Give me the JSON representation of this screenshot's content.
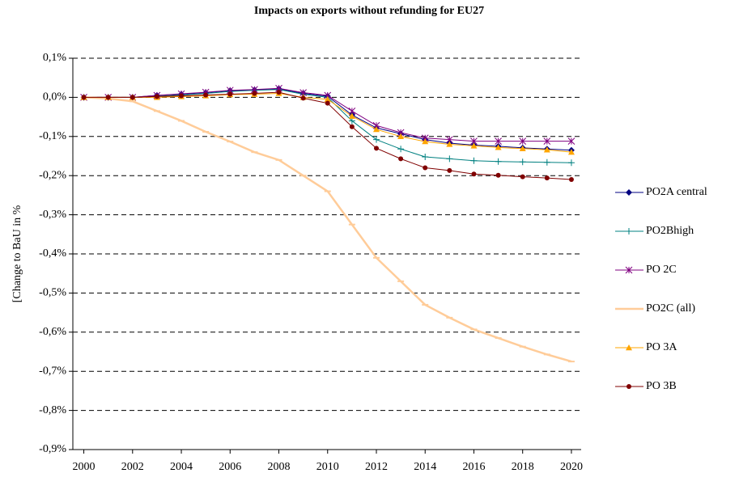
{
  "chart_data": {
    "type": "line",
    "title": "Impacts on exports without refunding for EU27",
    "y_label": "[Change to BaU in %",
    "x": [
      2000,
      2001,
      2002,
      2003,
      2004,
      2005,
      2006,
      2007,
      2008,
      2009,
      2010,
      2011,
      2012,
      2013,
      2014,
      2015,
      2016,
      2017,
      2018,
      2019,
      2020
    ],
    "xlim": [
      1999.55,
      2020.4
    ],
    "xticks": [
      2000,
      2002,
      2004,
      2006,
      2008,
      2010,
      2012,
      2014,
      2016,
      2018,
      2020
    ],
    "ylim": [
      -0.9,
      0.1
    ],
    "yticks": [
      {
        "value": 0.1,
        "label": "0,1%"
      },
      {
        "value": 0,
        "label": "0,0%"
      },
      {
        "value": -0.1,
        "label": "-0,1%"
      },
      {
        "value": -0.2,
        "label": "-0,2%"
      },
      {
        "value": -0.3,
        "label": "-0,3%"
      },
      {
        "value": -0.4,
        "label": "-0,4%"
      },
      {
        "value": -0.5,
        "label": "-0,5%"
      },
      {
        "value": -0.6,
        "label": "-0,6%"
      },
      {
        "value": -0.7,
        "label": "-0,7%"
      },
      {
        "value": -0.8,
        "label": "-0,8%"
      },
      {
        "value": -0.9,
        "label": "-0,9%"
      }
    ],
    "grid": true,
    "legend": "right",
    "series": [
      {
        "name": "PO2A central",
        "color": "#000080",
        "marker": "diamond",
        "values": [
          0,
          0,
          0,
          0.005,
          0.008,
          0.012,
          0.017,
          0.019,
          0.022,
          0.01,
          0.003,
          -0.045,
          -0.078,
          -0.093,
          -0.108,
          -0.117,
          -0.122,
          -0.125,
          -0.129,
          -0.132,
          -0.135
        ]
      },
      {
        "name": "PO2Bhigh",
        "color": "#008080",
        "marker": "plus",
        "values": [
          0,
          0,
          0,
          0.003,
          0.006,
          0.01,
          0.015,
          0.018,
          0.02,
          0.008,
          0,
          -0.06,
          -0.108,
          -0.132,
          -0.152,
          -0.157,
          -0.162,
          -0.164,
          -0.165,
          -0.166,
          -0.167
        ]
      },
      {
        "name": "PO 2C",
        "color": "#800080",
        "marker": "star",
        "values": [
          0,
          0,
          0,
          0.005,
          0.009,
          0.013,
          0.018,
          0.02,
          0.023,
          0.012,
          0.005,
          -0.035,
          -0.072,
          -0.09,
          -0.104,
          -0.108,
          -0.112,
          -0.112,
          -0.112,
          -0.112,
          -0.112
        ]
      },
      {
        "name": "PO2C (all)",
        "color": "#FFCC99",
        "marker": "dash",
        "values": [
          0,
          -0.003,
          -0.01,
          -0.035,
          -0.06,
          -0.088,
          -0.113,
          -0.14,
          -0.16,
          -0.2,
          -0.24,
          -0.325,
          -0.41,
          -0.47,
          -0.53,
          -0.563,
          -0.593,
          -0.615,
          -0.637,
          -0.657,
          -0.675
        ]
      },
      {
        "name": "PO 3A",
        "color": "#FFA500",
        "marker": "triangle",
        "values": [
          0,
          0,
          0,
          0,
          0.002,
          0.004,
          0.007,
          0.008,
          0.01,
          0,
          -0.005,
          -0.048,
          -0.082,
          -0.1,
          -0.113,
          -0.12,
          -0.124,
          -0.128,
          -0.131,
          -0.134,
          -0.14
        ]
      },
      {
        "name": "PO 3B",
        "color": "#800000",
        "marker": "circle",
        "values": [
          0,
          0,
          0,
          0.002,
          0.004,
          0.006,
          0.008,
          0.01,
          0.013,
          -0.002,
          -0.015,
          -0.075,
          -0.13,
          -0.157,
          -0.18,
          -0.187,
          -0.196,
          -0.199,
          -0.203,
          -0.206,
          -0.21
        ]
      }
    ]
  }
}
